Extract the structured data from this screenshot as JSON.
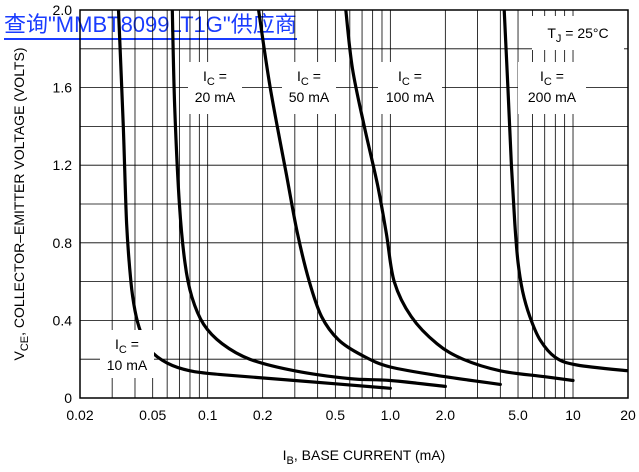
{
  "banner": {
    "text": "查询\"MMBT8099LT1G\"供应商",
    "color": "#1a3cff"
  },
  "chart_data": {
    "type": "line",
    "title": "",
    "xlabel_main": "I",
    "xlabel_sub": "B",
    "xlabel_rest": ", BASE CURRENT (mA)",
    "ylabel_main": "V",
    "ylabel_sub": "CE",
    "ylabel_rest": ", COLLECTOR–EMITTER VOLTAGE (VOLTS)",
    "x_scale": "log",
    "xlim": [
      0.02,
      20
    ],
    "ylim": [
      0,
      2.0
    ],
    "x_tick_values": [
      0.02,
      0.05,
      0.1,
      0.2,
      0.5,
      1.0,
      2.0,
      5.0,
      10,
      20
    ],
    "x_tick_labels": [
      "0.02",
      "0.05",
      "0.1",
      "0.2",
      "0.5",
      "1.0",
      "2.0",
      "5.0",
      "10",
      "20"
    ],
    "y_tick_values": [
      0,
      0.4,
      0.8,
      1.2,
      1.6,
      2.0
    ],
    "y_tick_labels": [
      "0",
      "0.4",
      "0.8",
      "1.2",
      "1.6",
      "2.0"
    ],
    "grid": true,
    "condition": {
      "main": "T",
      "sub": "J",
      "rest": " = 25°C"
    },
    "series": [
      {
        "label_main": "I",
        "label_sub": "C",
        "label_eq": " =",
        "label_value": "10 mA",
        "points": [
          [
            0.0325,
            2.0
          ],
          [
            0.0345,
            1.4
          ],
          [
            0.036,
            0.9
          ],
          [
            0.038,
            0.6
          ],
          [
            0.04,
            0.45
          ],
          [
            0.043,
            0.34
          ],
          [
            0.048,
            0.25
          ],
          [
            0.06,
            0.18
          ],
          [
            0.08,
            0.14
          ],
          [
            0.12,
            0.12
          ],
          [
            0.3,
            0.09
          ],
          [
            1.0,
            0.05
          ]
        ]
      },
      {
        "label_main": "I",
        "label_sub": "C",
        "label_eq": " =",
        "label_value": "20 mA",
        "points": [
          [
            0.064,
            2.0
          ],
          [
            0.066,
            1.5
          ],
          [
            0.07,
            1.0
          ],
          [
            0.075,
            0.7
          ],
          [
            0.082,
            0.52
          ],
          [
            0.095,
            0.38
          ],
          [
            0.12,
            0.28
          ],
          [
            0.17,
            0.2
          ],
          [
            0.3,
            0.14
          ],
          [
            0.6,
            0.1
          ],
          [
            1.0,
            0.09
          ],
          [
            2.0,
            0.06
          ]
        ]
      },
      {
        "label_main": "I",
        "label_sub": "C",
        "label_eq": " =",
        "label_value": "50 mA",
        "points": [
          [
            0.19,
            2.0
          ],
          [
            0.22,
            1.6
          ],
          [
            0.27,
            1.15
          ],
          [
            0.31,
            0.85
          ],
          [
            0.36,
            0.6
          ],
          [
            0.42,
            0.42
          ],
          [
            0.52,
            0.3
          ],
          [
            0.7,
            0.22
          ],
          [
            1.0,
            0.16
          ],
          [
            2.0,
            0.11
          ],
          [
            4.0,
            0.07
          ]
        ]
      },
      {
        "label_main": "I",
        "label_sub": "C",
        "label_eq": " =",
        "label_value": "100 mA",
        "points": [
          [
            0.57,
            2.0
          ],
          [
            0.62,
            1.7
          ],
          [
            0.72,
            1.4
          ],
          [
            0.85,
            1.1
          ],
          [
            0.95,
            0.85
          ],
          [
            1.05,
            0.6
          ],
          [
            1.3,
            0.42
          ],
          [
            1.8,
            0.28
          ],
          [
            2.5,
            0.2
          ],
          [
            4.0,
            0.14
          ],
          [
            7.0,
            0.11
          ],
          [
            10,
            0.09
          ]
        ]
      },
      {
        "label_main": "I",
        "label_sub": "C",
        "label_eq": " =",
        "label_value": "200 mA",
        "points": [
          [
            4.2,
            2.0
          ],
          [
            4.4,
            1.6
          ],
          [
            4.6,
            1.2
          ],
          [
            4.8,
            0.9
          ],
          [
            5.0,
            0.7
          ],
          [
            5.3,
            0.55
          ],
          [
            5.8,
            0.42
          ],
          [
            6.6,
            0.3
          ],
          [
            8.0,
            0.21
          ],
          [
            10.5,
            0.17
          ],
          [
            20,
            0.14
          ]
        ]
      }
    ]
  }
}
